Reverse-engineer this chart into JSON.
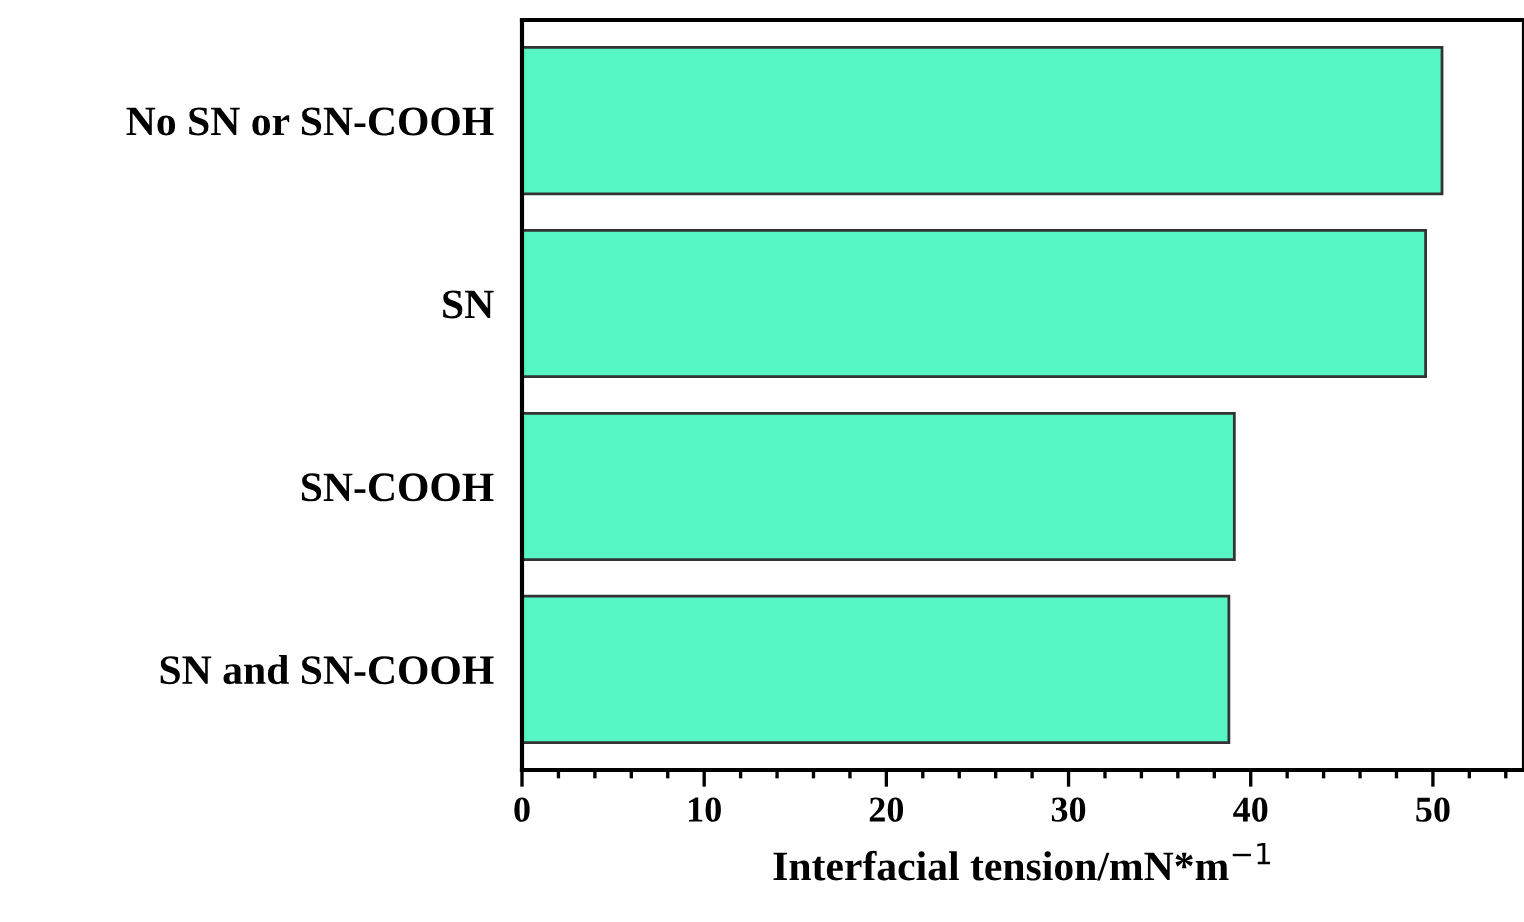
{
  "chart_data": {
    "type": "bar",
    "orientation": "horizontal",
    "categories": [
      "No SN or SN-COOH",
      "SN",
      "SN-COOH",
      "SN and SN-COOH"
    ],
    "values": [
      50.5,
      49.6,
      39.1,
      38.8
    ],
    "color": "#55f5c4",
    "xlabel": "Interfacial tension/mN*m$^{−1}$",
    "xlim": [
      0,
      55
    ],
    "xticks": [
      0,
      10,
      20,
      30,
      40,
      50
    ],
    "grid": false
  }
}
